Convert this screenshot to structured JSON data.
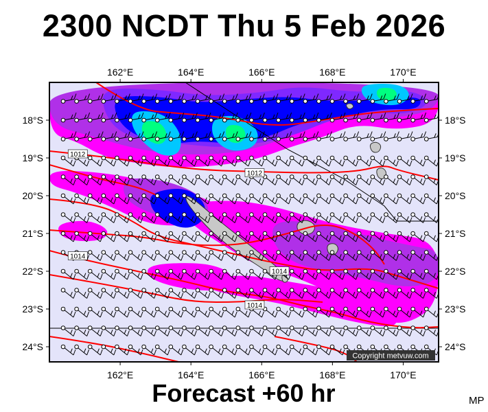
{
  "header": {
    "title": "2300 NCDT Thu 5 Feb 2026"
  },
  "footer": {
    "forecast": "Forecast +60 hr",
    "mark": "MP"
  },
  "map": {
    "extent": {
      "lon": [
        160,
        171
      ],
      "lat": [
        -24.4,
        -17.0
      ]
    },
    "lon_ticks": [
      "162°E",
      "164°E",
      "166°E",
      "168°E",
      "170°E"
    ],
    "lat_ticks": [
      "18°S",
      "19°S",
      "20°S",
      "21°S",
      "22°S",
      "23°S",
      "24°S"
    ],
    "copyright": "Copyright metvuw.com",
    "isobar_labels": [
      {
        "text": "1012",
        "lon": 160.8,
        "lat": -18.9
      },
      {
        "text": "1012",
        "lon": 165.8,
        "lat": -19.4
      },
      {
        "text": "1014",
        "lon": 160.8,
        "lat": -21.6
      },
      {
        "text": "1014",
        "lon": 166.5,
        "lat": -22.0
      },
      {
        "text": "1014",
        "lon": 165.8,
        "lat": -22.9
      }
    ],
    "colors": {
      "background": "#e4e4fa",
      "magenta": "#ff00ff",
      "purple": "#b030e8",
      "violet": "#7f28ff",
      "blue": "#0000ff",
      "cyan": "#00c8ff",
      "green": "#00ff80",
      "isobar": "#ff0000",
      "land": "#c8c8c8"
    }
  }
}
